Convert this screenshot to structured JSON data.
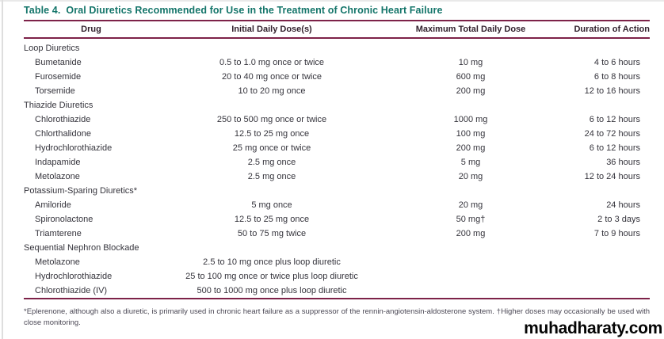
{
  "page": {
    "table_label": "Table 4.",
    "title": "Oral Diuretics Recommended for Use in the Treatment of Chronic Heart Failure",
    "footnote": "*Eplerenone, although also a diuretic, is primarily used in chronic heart failure as a suppressor of the rennin-angiotensin-aldosterone system. †Higher doses may occasionally be used with close monitoring.",
    "watermark": "muhadharaty.com"
  },
  "colors": {
    "title_teal": "#14756a",
    "rule_maroon": "#7d2248",
    "body_text": "#35343c",
    "footnote_text": "#4a4754"
  },
  "table": {
    "columns": [
      "Drug",
      "Initial Daily Dose(s)",
      "Maximum Total Daily Dose",
      "Duration of Action"
    ],
    "rows": [
      {
        "type": "category",
        "drug": "Loop Diuretics"
      },
      {
        "type": "drug",
        "drug": "Bumetanide",
        "initial": "0.5 to 1.0 mg once or twice",
        "max": "10 mg",
        "duration": "4 to 6 hours"
      },
      {
        "type": "drug",
        "drug": "Furosemide",
        "initial": "20 to 40 mg once or twice",
        "max": "600 mg",
        "duration": "6 to 8 hours"
      },
      {
        "type": "drug",
        "drug": "Torsemide",
        "initial": "10 to 20 mg once",
        "max": "200 mg",
        "duration": "12 to 16 hours"
      },
      {
        "type": "category",
        "drug": "Thiazide Diuretics"
      },
      {
        "type": "drug",
        "drug": "Chlorothiazide",
        "initial": "250 to 500 mg once or twice",
        "max": "1000 mg",
        "duration": "6 to 12 hours"
      },
      {
        "type": "drug",
        "drug": "Chlorthalidone",
        "initial": "12.5 to 25 mg once",
        "max": "100 mg",
        "duration": "24 to 72 hours"
      },
      {
        "type": "drug",
        "drug": "Hydrochlorothiazide",
        "initial": "25 mg once or twice",
        "max": "200 mg",
        "duration": "6 to 12 hours"
      },
      {
        "type": "drug",
        "drug": "Indapamide",
        "initial": "2.5 mg once",
        "max": "5 mg",
        "duration": "36 hours"
      },
      {
        "type": "drug",
        "drug": "Metolazone",
        "initial": "2.5 mg once",
        "max": "20 mg",
        "duration": "12 to 24 hours"
      },
      {
        "type": "category",
        "drug": "Potassium-Sparing Diuretics*"
      },
      {
        "type": "drug",
        "drug": "Amiloride",
        "initial": "5 mg once",
        "max": "20 mg",
        "duration": "24 hours"
      },
      {
        "type": "drug",
        "drug": "Spironolactone",
        "initial": "12.5 to 25 mg once",
        "max": "50 mg†",
        "duration": "2 to 3 days"
      },
      {
        "type": "drug",
        "drug": "Triamterene",
        "initial": "50 to 75 mg twice",
        "max": "200 mg",
        "duration": "7 to 9 hours"
      },
      {
        "type": "category",
        "drug": "Sequential Nephron Blockade"
      },
      {
        "type": "drug",
        "drug": "Metolazone",
        "initial": "2.5 to 10 mg once plus loop diuretic",
        "max": "",
        "duration": ""
      },
      {
        "type": "drug",
        "drug": "Hydrochlorothiazide",
        "initial": "25 to 100 mg once or twice plus loop diuretic",
        "max": "",
        "duration": ""
      },
      {
        "type": "drug",
        "drug": "Chlorothiazide (IV)",
        "initial": "500 to 1000 mg once plus loop diuretic",
        "max": "",
        "duration": ""
      }
    ]
  }
}
